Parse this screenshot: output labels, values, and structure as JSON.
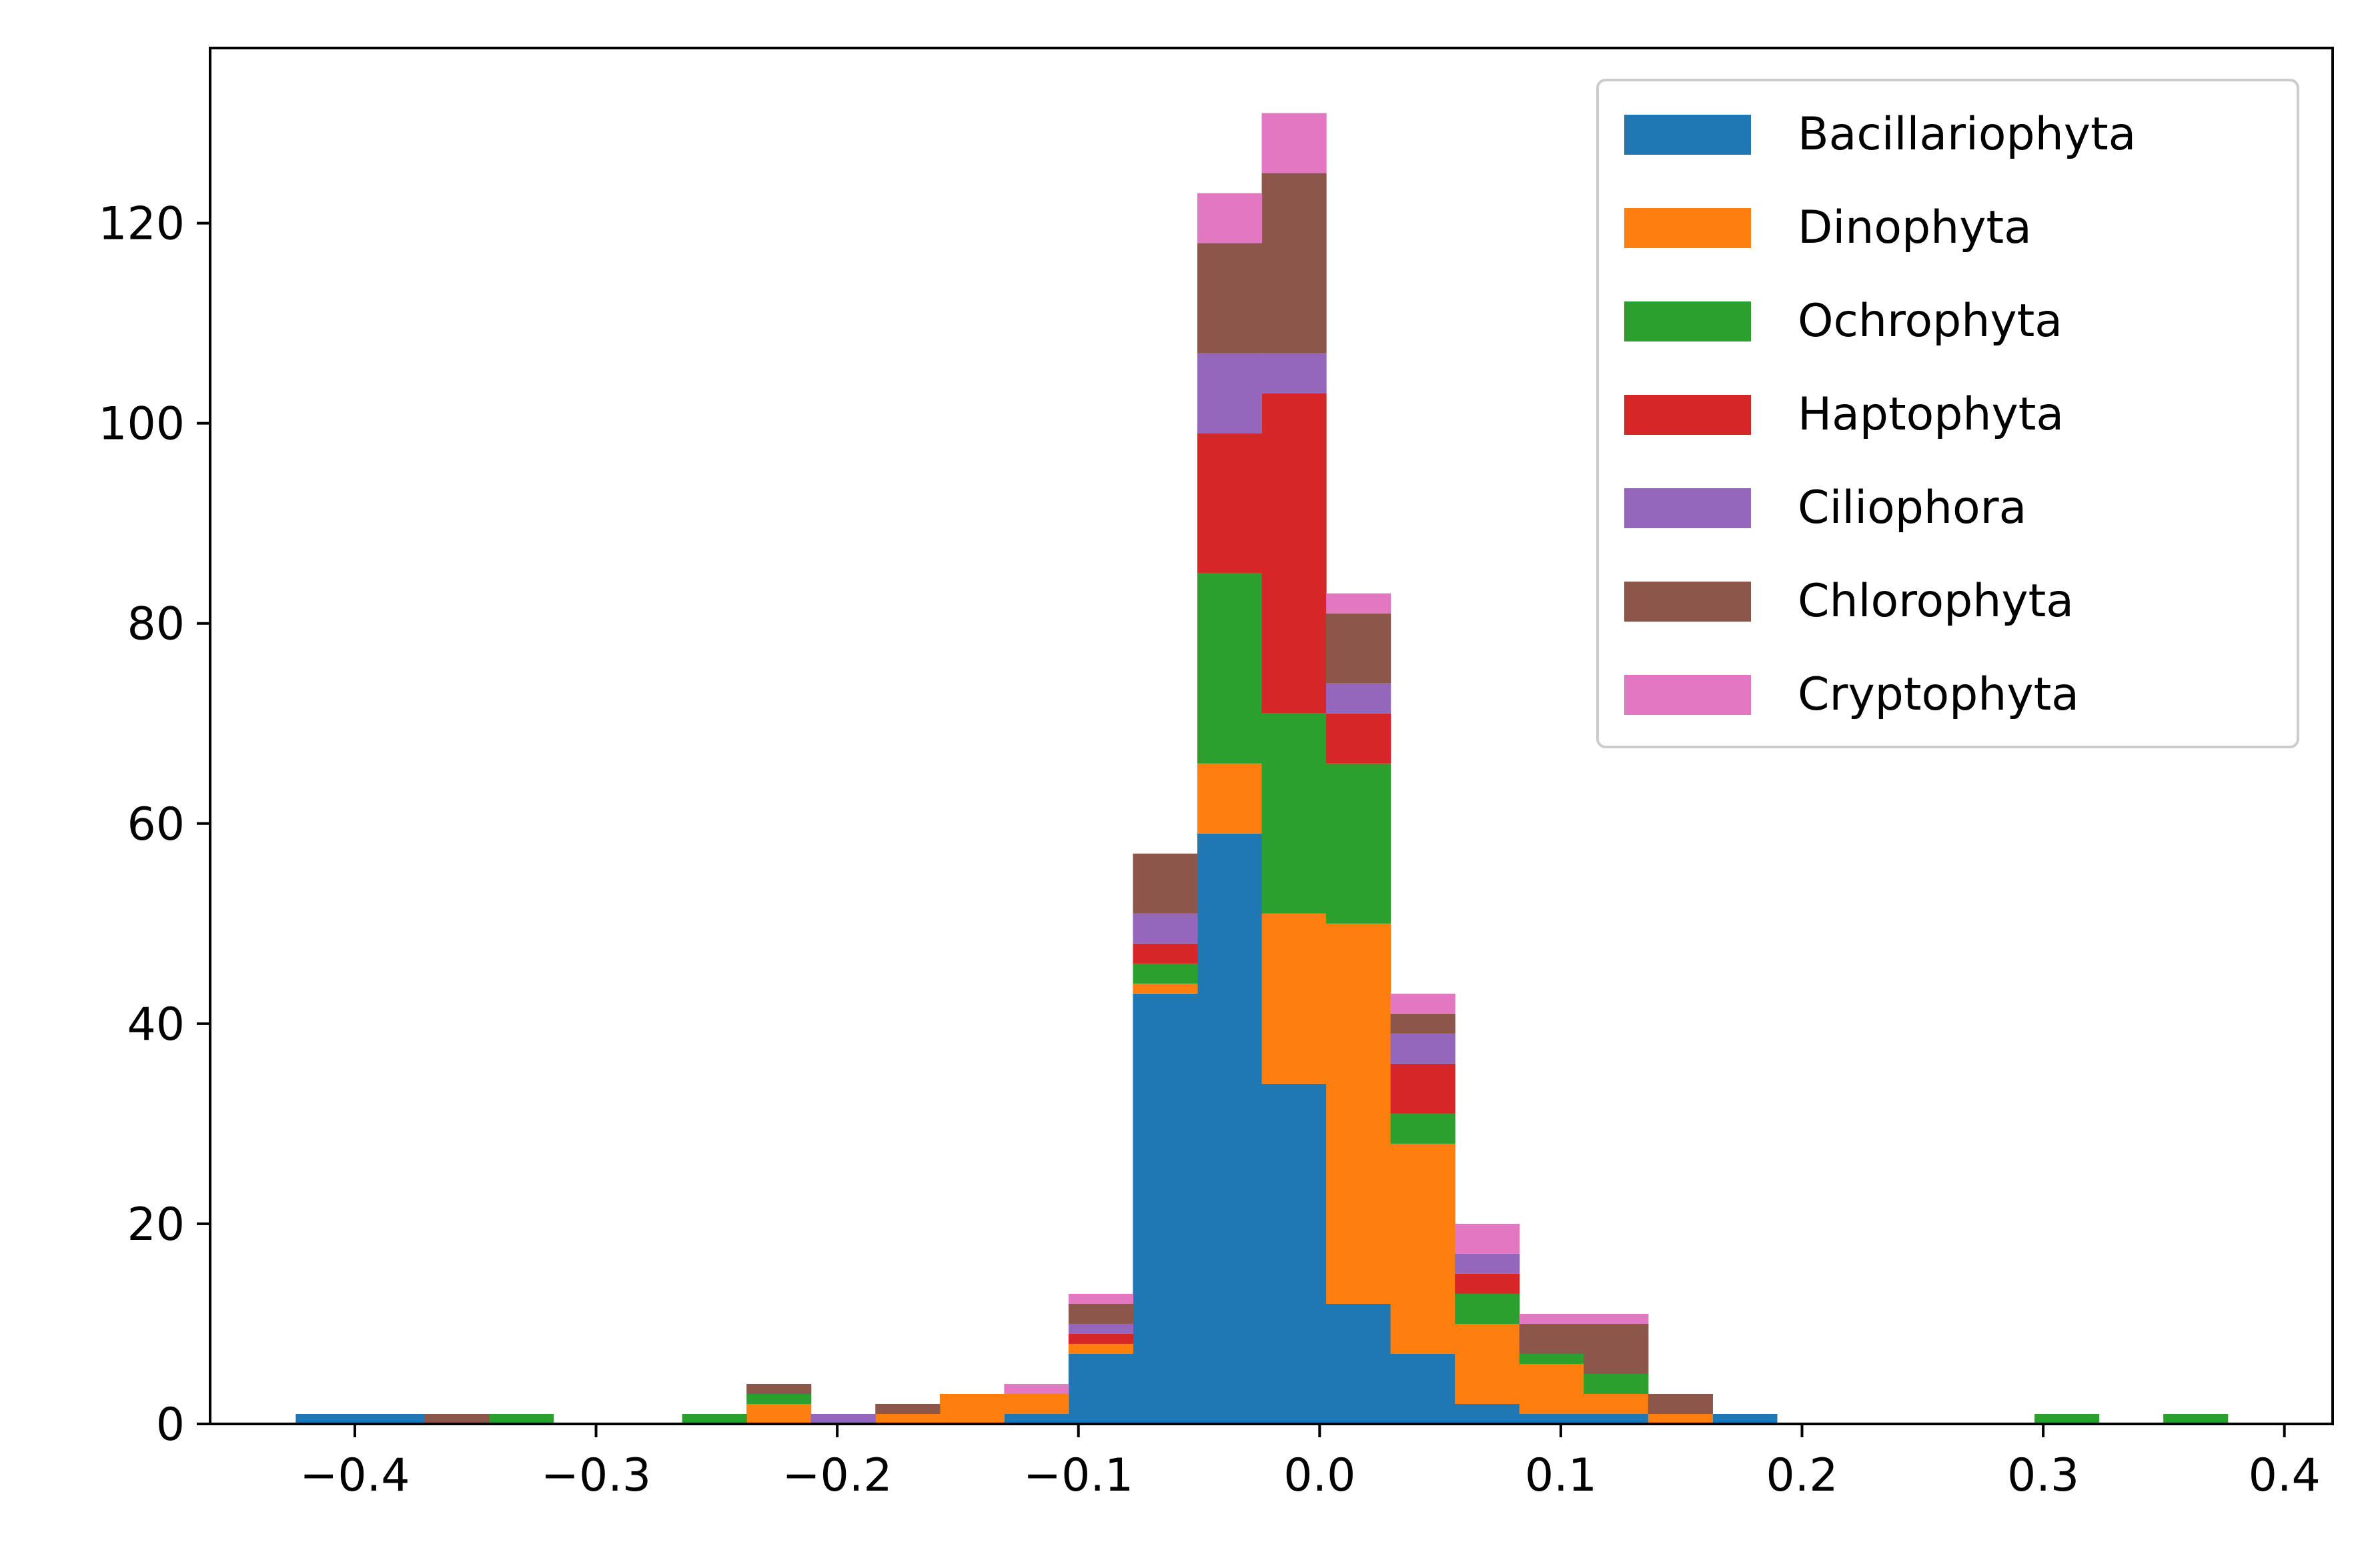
{
  "chart_data": {
    "type": "bar",
    "stacked": true,
    "histogram": true,
    "title": "",
    "xlabel": "",
    "ylabel": "",
    "xlim": [
      -0.46,
      0.42
    ],
    "ylim": [
      0,
      137.5
    ],
    "xticks": [
      -0.4,
      -0.3,
      -0.2,
      -0.1,
      0.0,
      0.1,
      0.2,
      0.3,
      0.4
    ],
    "xtick_labels": [
      "−0.4",
      "−0.3",
      "−0.2",
      "−0.1",
      "0.0",
      "0.1",
      "0.2",
      "0.3",
      "0.4"
    ],
    "yticks": [
      0,
      20,
      40,
      60,
      80,
      100,
      120
    ],
    "ytick_labels": [
      "0",
      "20",
      "40",
      "60",
      "80",
      "100",
      "120"
    ],
    "grid": false,
    "legend_position": "top-right",
    "bin_edges": [
      -0.4245,
      -0.3978,
      -0.3711,
      -0.3444,
      -0.3177,
      -0.291,
      -0.2643,
      -0.2376,
      -0.2109,
      -0.1842,
      -0.1575,
      -0.1308,
      -0.1041,
      -0.0774,
      -0.0507,
      -0.024,
      0.0027,
      0.0294,
      0.0561,
      0.0828,
      0.1095,
      0.1362,
      0.1629,
      0.1896,
      0.2163,
      0.243,
      0.2697,
      0.2964,
      0.3231,
      0.3498,
      0.3765
    ],
    "series": [
      {
        "name": "Bacillariophyta",
        "color": "#1f77b4",
        "values": [
          1,
          1,
          0,
          0,
          0,
          0,
          0,
          0,
          0,
          0,
          0,
          1,
          7,
          43,
          59,
          34,
          12,
          7,
          2,
          1,
          1,
          0,
          1,
          0,
          0,
          0,
          0,
          0,
          0,
          0
        ]
      },
      {
        "name": "Dinophyta",
        "color": "#ff7f0e",
        "values": [
          0,
          0,
          0,
          0,
          0,
          0,
          0,
          2,
          0,
          1,
          3,
          2,
          1,
          1,
          7,
          17,
          38,
          21,
          8,
          5,
          2,
          1,
          0,
          0,
          0,
          0,
          0,
          0,
          0,
          0
        ]
      },
      {
        "name": "Ochrophyta",
        "color": "#2ca02c",
        "values": [
          0,
          0,
          0,
          1,
          0,
          0,
          1,
          1,
          0,
          0,
          0,
          0,
          0,
          2,
          19,
          20,
          16,
          3,
          3,
          1,
          2,
          0,
          0,
          0,
          0,
          0,
          0,
          1,
          0,
          1
        ]
      },
      {
        "name": "Haptophyta",
        "color": "#d62728",
        "values": [
          0,
          0,
          0,
          0,
          0,
          0,
          0,
          0,
          0,
          0,
          0,
          0,
          1,
          2,
          14,
          32,
          5,
          5,
          2,
          0,
          0,
          0,
          0,
          0,
          0,
          0,
          0,
          0,
          0,
          0
        ]
      },
      {
        "name": "Ciliophora",
        "color": "#9467bd",
        "values": [
          0,
          0,
          0,
          0,
          0,
          0,
          0,
          0,
          1,
          0,
          0,
          0,
          1,
          3,
          8,
          4,
          3,
          3,
          2,
          0,
          0,
          0,
          0,
          0,
          0,
          0,
          0,
          0,
          0,
          0
        ]
      },
      {
        "name": "Chlorophyta",
        "color": "#8c564b",
        "values": [
          0,
          0,
          1,
          0,
          0,
          0,
          0,
          1,
          0,
          1,
          0,
          0,
          2,
          6,
          11,
          18,
          7,
          2,
          0,
          3,
          5,
          2,
          0,
          0,
          0,
          0,
          0,
          0,
          0,
          0
        ]
      },
      {
        "name": "Cryptophyta",
        "color": "#e377c2",
        "values": [
          0,
          0,
          0,
          0,
          0,
          0,
          0,
          0,
          0,
          0,
          0,
          1,
          1,
          0,
          5,
          6,
          2,
          2,
          3,
          1,
          1,
          0,
          0,
          0,
          0,
          0,
          0,
          0,
          0,
          0
        ]
      }
    ]
  }
}
